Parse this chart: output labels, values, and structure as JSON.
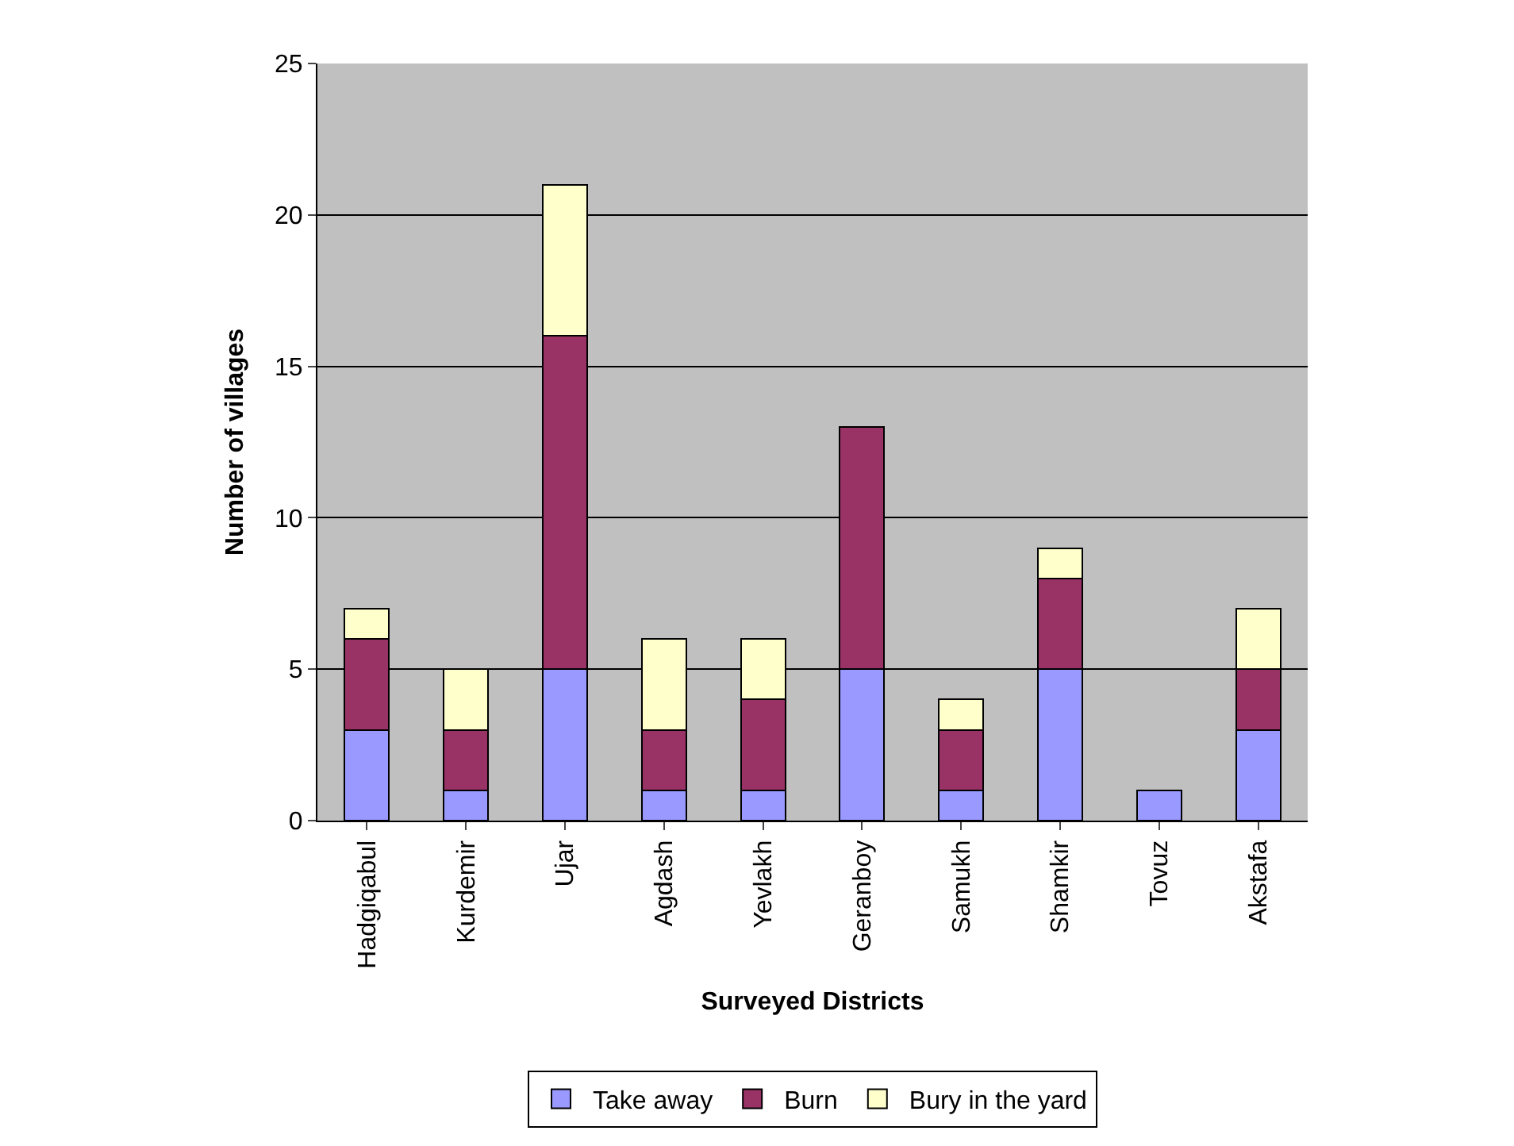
{
  "chart_data": {
    "type": "bar",
    "stacked": true,
    "xlabel": "Surveyed Districts",
    "ylabel": "Number of villages",
    "categories": [
      "Hadgiqabul",
      "Kurdemir",
      "Ujar",
      "Agdash",
      "Yevlakh",
      "Geranboy",
      "Samukh",
      "Shamkir",
      "Tovuz",
      "Akstafa"
    ],
    "series": [
      {
        "name": "Take away",
        "color": "#9999ff",
        "values": [
          3,
          1,
          5,
          1,
          1,
          5,
          1,
          5,
          1,
          3
        ]
      },
      {
        "name": "Burn",
        "color": "#993366",
        "values": [
          3,
          2,
          11,
          2,
          3,
          8,
          2,
          3,
          0,
          2
        ]
      },
      {
        "name": "Bury in the yard",
        "color": "#ffffcc",
        "values": [
          1,
          2,
          5,
          3,
          2,
          0,
          1,
          1,
          0,
          2
        ]
      }
    ],
    "ylim": [
      0,
      25
    ],
    "yticks": [
      0,
      5,
      10,
      15,
      20,
      25
    ],
    "grid": "y",
    "legend": "bottom"
  }
}
